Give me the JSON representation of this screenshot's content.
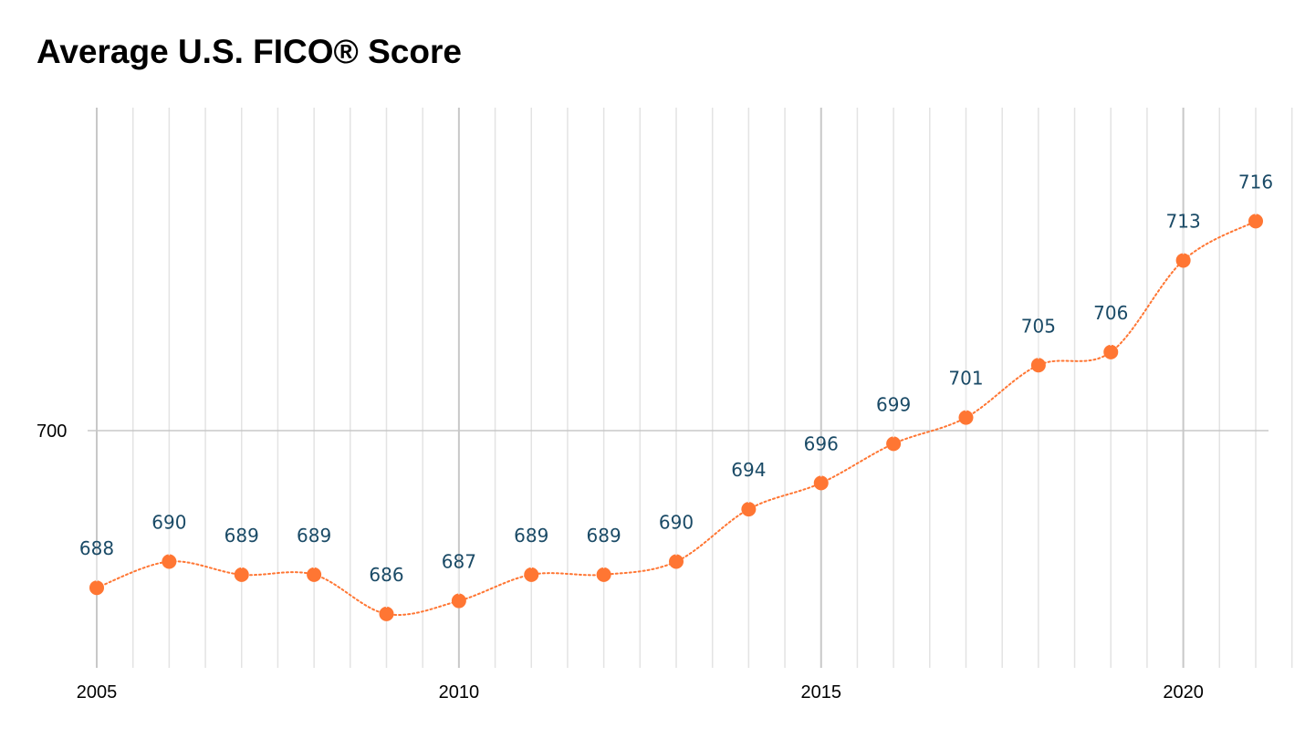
{
  "title": "Average U.S. FICO® Score",
  "colors": {
    "marker": "#ff7633",
    "line": "#ff7633",
    "label": "#1a4a66",
    "major_grid": "#c8c8c8",
    "minor_grid": "#e3e3e3"
  },
  "chart_data": {
    "type": "line",
    "title": "Average U.S. FICO® Score",
    "xlabel": "",
    "ylabel": "",
    "x": [
      2005,
      2006,
      2007,
      2008,
      2009,
      2010,
      2011,
      2012,
      2013,
      2014,
      2015,
      2016,
      2017,
      2018,
      2019,
      2020,
      2021
    ],
    "values": [
      688,
      690,
      689,
      689,
      686,
      687,
      689,
      689,
      690,
      694,
      696,
      699,
      701,
      705,
      706,
      713,
      716
    ],
    "x_ticks": [
      "2005",
      "2010",
      "2015",
      "2020"
    ],
    "y_ticks": [
      "700"
    ],
    "xlim": [
      2005,
      2021
    ],
    "ylim": [
      682,
      730
    ],
    "grid": true,
    "legend": "none",
    "line_style": "dotted",
    "data_labels": true
  }
}
